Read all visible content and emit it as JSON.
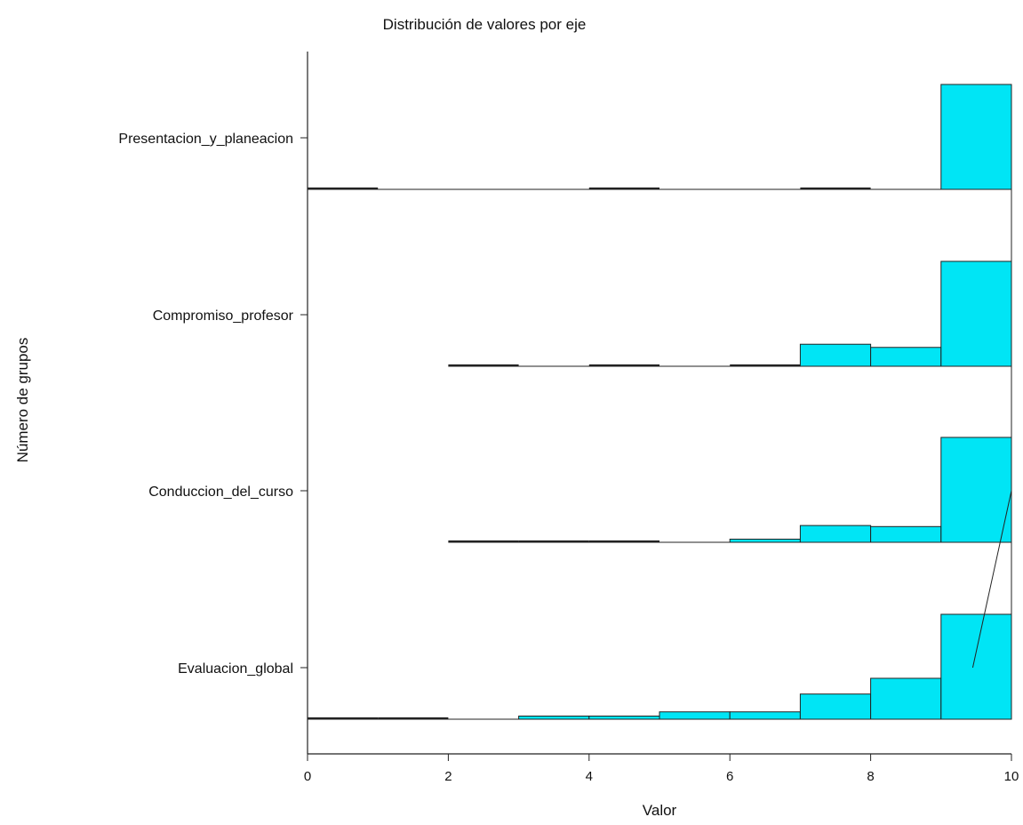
{
  "chart_data": {
    "type": "bar",
    "subtype": "ridgeline-histogram",
    "title": "Distribución de valores por eje",
    "xlabel": "Valor",
    "ylabel": "Número de grupos",
    "xlim": [
      0,
      10
    ],
    "xticks": [
      "0",
      "2",
      "4",
      "6",
      "8",
      "10"
    ],
    "bin_edges": [
      0,
      1,
      2,
      3,
      4,
      5,
      6,
      7,
      8,
      9,
      10
    ],
    "grid": false,
    "legend": "none",
    "bar_color": "#00e5f5",
    "series": [
      {
        "name": "Presentacion_y_planeacion",
        "values": [
          1,
          0,
          0,
          0,
          1,
          0,
          0,
          1,
          0,
          100
        ]
      },
      {
        "name": "Compromiso_profesor",
        "values": [
          null,
          null,
          1,
          0,
          1,
          0,
          2,
          21,
          18,
          100
        ]
      },
      {
        "name": "Conduccion_del_curso",
        "values": [
          null,
          null,
          1,
          1,
          1,
          0,
          3,
          16,
          15,
          100
        ]
      },
      {
        "name": "Evaluacion_global",
        "values": [
          1,
          1,
          0,
          3,
          3,
          7,
          7,
          24,
          39,
          100
        ]
      }
    ],
    "annotations": [
      {
        "type": "line",
        "from": [
          9.45,
          "Evaluacion_global"
        ],
        "to": [
          10,
          "Conduccion_del_curso"
        ]
      }
    ]
  }
}
